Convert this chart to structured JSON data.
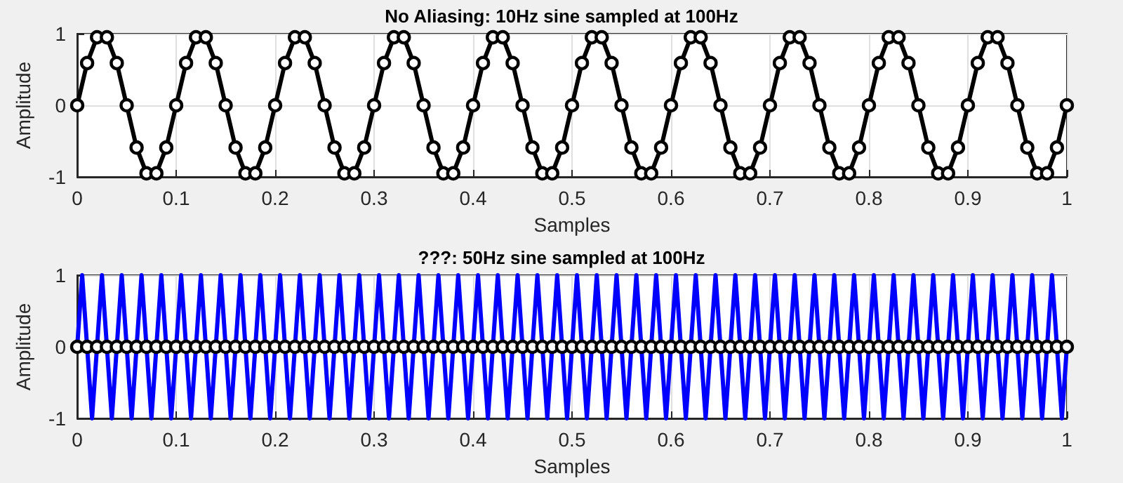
{
  "chart_data": [
    {
      "type": "line",
      "title": "No Aliasing: 10Hz sine sampled at 100Hz",
      "xlabel": "Samples",
      "ylabel": "Amplitude",
      "xlim": [
        0,
        1
      ],
      "xticks": [
        0,
        0.1,
        0.2,
        0.3,
        0.4,
        0.5,
        0.6,
        0.7,
        0.8,
        0.9,
        1
      ],
      "ylim": [
        -1,
        1
      ],
      "yticks": [
        -1,
        0,
        1
      ],
      "grid": true,
      "marker": "circle",
      "x": [
        0,
        0.01,
        0.02,
        0.03,
        0.04,
        0.05,
        0.06,
        0.07,
        0.08,
        0.09,
        0.1,
        0.11,
        0.12,
        0.13,
        0.14,
        0.15,
        0.16,
        0.17,
        0.18,
        0.19,
        0.2,
        0.21,
        0.22,
        0.23,
        0.24,
        0.25,
        0.26,
        0.27,
        0.28,
        0.29,
        0.3,
        0.31,
        0.32,
        0.33,
        0.34,
        0.35,
        0.36,
        0.37,
        0.38,
        0.39,
        0.4,
        0.41,
        0.42,
        0.43,
        0.44,
        0.45,
        0.46,
        0.47,
        0.48,
        0.49,
        0.5,
        0.51,
        0.52,
        0.53,
        0.54,
        0.55,
        0.56,
        0.57,
        0.58,
        0.59,
        0.6,
        0.61,
        0.62,
        0.63,
        0.64,
        0.65,
        0.66,
        0.67,
        0.68,
        0.69,
        0.7,
        0.71,
        0.72,
        0.73,
        0.74,
        0.75,
        0.76,
        0.77,
        0.78,
        0.79,
        0.8,
        0.81,
        0.82,
        0.83,
        0.84,
        0.85,
        0.86,
        0.87,
        0.88,
        0.89,
        0.9,
        0.91,
        0.92,
        0.93,
        0.94,
        0.95,
        0.96,
        0.97,
        0.98,
        0.99,
        1
      ],
      "series": [
        {
          "color": "#000000",
          "values": [
            0,
            0.59,
            0.95,
            0.95,
            0.59,
            0,
            -0.59,
            -0.95,
            -0.95,
            -0.59,
            0,
            0.59,
            0.95,
            0.95,
            0.59,
            0,
            -0.59,
            -0.95,
            -0.95,
            -0.59,
            0,
            0.59,
            0.95,
            0.95,
            0.59,
            0,
            -0.59,
            -0.95,
            -0.95,
            -0.59,
            0,
            0.59,
            0.95,
            0.95,
            0.59,
            0,
            -0.59,
            -0.95,
            -0.95,
            -0.59,
            0,
            0.59,
            0.95,
            0.95,
            0.59,
            0,
            -0.59,
            -0.95,
            -0.95,
            -0.59,
            0,
            0.59,
            0.95,
            0.95,
            0.59,
            0,
            -0.59,
            -0.95,
            -0.95,
            -0.59,
            0,
            0.59,
            0.95,
            0.95,
            0.59,
            0,
            -0.59,
            -0.95,
            -0.95,
            -0.59,
            0,
            0.59,
            0.95,
            0.95,
            0.59,
            0,
            -0.59,
            -0.95,
            -0.95,
            -0.59,
            0,
            0.59,
            0.95,
            0.95,
            0.59,
            0,
            -0.59,
            -0.95,
            -0.95,
            -0.59,
            0,
            0.59,
            0.95,
            0.95,
            0.59,
            0,
            -0.59,
            -0.95,
            -0.95,
            -0.59,
            0
          ]
        }
      ]
    },
    {
      "type": "line",
      "title": "???: 50Hz sine sampled at 100Hz",
      "xlabel": "Samples",
      "ylabel": "Amplitude",
      "xlim": [
        0,
        1
      ],
      "xticks": [
        0,
        0.1,
        0.2,
        0.3,
        0.4,
        0.5,
        0.6,
        0.7,
        0.8,
        0.9,
        1
      ],
      "ylim": [
        -1,
        1
      ],
      "yticks": [
        -1,
        0,
        1
      ],
      "grid": true,
      "marker": "circle",
      "x": [
        0,
        0.01,
        0.02,
        0.03,
        0.04,
        0.05,
        0.06,
        0.07,
        0.08,
        0.09,
        0.1,
        0.11,
        0.12,
        0.13,
        0.14,
        0.15,
        0.16,
        0.17,
        0.18,
        0.19,
        0.2,
        0.21,
        0.22,
        0.23,
        0.24,
        0.25,
        0.26,
        0.27,
        0.28,
        0.29,
        0.3,
        0.31,
        0.32,
        0.33,
        0.34,
        0.35,
        0.36,
        0.37,
        0.38,
        0.39,
        0.4,
        0.41,
        0.42,
        0.43,
        0.44,
        0.45,
        0.46,
        0.47,
        0.48,
        0.49,
        0.5,
        0.51,
        0.52,
        0.53,
        0.54,
        0.55,
        0.56,
        0.57,
        0.58,
        0.59,
        0.6,
        0.61,
        0.62,
        0.63,
        0.64,
        0.65,
        0.66,
        0.67,
        0.68,
        0.69,
        0.7,
        0.71,
        0.72,
        0.73,
        0.74,
        0.75,
        0.76,
        0.77,
        0.78,
        0.79,
        0.8,
        0.81,
        0.82,
        0.83,
        0.84,
        0.85,
        0.86,
        0.87,
        0.88,
        0.89,
        0.9,
        0.91,
        0.92,
        0.93,
        0.94,
        0.95,
        0.96,
        0.97,
        0.98,
        0.99,
        1
      ],
      "series": [
        {
          "color": "#0000ff",
          "marker": "none",
          "x": [
            0,
            0.005,
            0.01,
            0.015,
            0.02,
            0.025,
            0.03,
            0.035,
            0.04,
            0.045,
            0.05,
            0.055,
            0.06,
            0.065,
            0.07,
            0.075,
            0.08,
            0.085,
            0.09,
            0.095,
            0.1,
            0.105,
            0.11,
            0.115,
            0.12,
            0.125,
            0.13,
            0.135,
            0.14,
            0.145,
            0.15,
            0.155,
            0.16,
            0.165,
            0.17,
            0.175,
            0.18,
            0.185,
            0.19,
            0.195,
            0.2,
            0.205,
            0.21,
            0.215,
            0.22,
            0.225,
            0.23,
            0.235,
            0.24,
            0.245,
            0.25,
            0.255,
            0.26,
            0.265,
            0.27,
            0.275,
            0.28,
            0.285,
            0.29,
            0.295,
            0.3,
            0.305,
            0.31,
            0.315,
            0.32,
            0.325,
            0.33,
            0.335,
            0.34,
            0.345,
            0.35,
            0.355,
            0.36,
            0.365,
            0.37,
            0.375,
            0.38,
            0.385,
            0.39,
            0.395,
            0.4,
            0.405,
            0.41,
            0.415,
            0.42,
            0.425,
            0.43,
            0.435,
            0.44,
            0.445,
            0.45,
            0.455,
            0.46,
            0.465,
            0.47,
            0.475,
            0.48,
            0.485,
            0.49,
            0.495,
            0.5,
            0.505,
            0.51,
            0.515,
            0.52,
            0.525,
            0.53,
            0.535,
            0.54,
            0.545,
            0.55,
            0.555,
            0.56,
            0.565,
            0.57,
            0.575,
            0.58,
            0.585,
            0.59,
            0.595,
            0.6,
            0.605,
            0.61,
            0.615,
            0.62,
            0.625,
            0.63,
            0.635,
            0.64,
            0.645,
            0.65,
            0.655,
            0.66,
            0.665,
            0.67,
            0.675,
            0.68,
            0.685,
            0.69,
            0.695,
            0.7,
            0.705,
            0.71,
            0.715,
            0.72,
            0.725,
            0.73,
            0.735,
            0.74,
            0.745,
            0.75,
            0.755,
            0.76,
            0.765,
            0.77,
            0.775,
            0.78,
            0.785,
            0.79,
            0.795,
            0.8,
            0.805,
            0.81,
            0.815,
            0.82,
            0.825,
            0.83,
            0.835,
            0.84,
            0.845,
            0.85,
            0.855,
            0.86,
            0.865,
            0.87,
            0.875,
            0.88,
            0.885,
            0.89,
            0.895,
            0.9,
            0.905,
            0.91,
            0.915,
            0.92,
            0.925,
            0.93,
            0.935,
            0.94,
            0.945,
            0.95,
            0.955,
            0.96,
            0.965,
            0.97,
            0.975,
            0.98,
            0.985,
            0.99,
            0.995,
            1
          ],
          "values": [
            0,
            1,
            0,
            -1,
            0,
            1,
            0,
            -1,
            0,
            1,
            0,
            -1,
            0,
            1,
            0,
            -1,
            0,
            1,
            0,
            -1,
            0,
            1,
            0,
            -1,
            0,
            1,
            0,
            -1,
            0,
            1,
            0,
            -1,
            0,
            1,
            0,
            -1,
            0,
            1,
            0,
            -1,
            0,
            1,
            0,
            -1,
            0,
            1,
            0,
            -1,
            0,
            1,
            0,
            -1,
            0,
            1,
            0,
            -1,
            0,
            1,
            0,
            -1,
            0,
            1,
            0,
            -1,
            0,
            1,
            0,
            -1,
            0,
            1,
            0,
            -1,
            0,
            1,
            0,
            -1,
            0,
            1,
            0,
            -1,
            0,
            1,
            0,
            -1,
            0,
            1,
            0,
            -1,
            0,
            1,
            0,
            -1,
            0,
            1,
            0,
            -1,
            0,
            1,
            0,
            -1,
            0,
            1,
            0,
            -1,
            0,
            1,
            0,
            -1,
            0,
            1,
            0,
            -1,
            0,
            1,
            0,
            -1,
            0,
            1,
            0,
            -1,
            0,
            1,
            0,
            -1,
            0,
            1,
            0,
            -1,
            0,
            1,
            0,
            -1,
            0,
            1,
            0,
            -1,
            0,
            1,
            0,
            -1,
            0,
            1,
            0,
            -1,
            0,
            1,
            0,
            -1,
            0,
            1,
            0,
            -1,
            0,
            1,
            0,
            -1,
            0,
            1,
            0,
            -1,
            0,
            1,
            0,
            -1,
            0,
            1,
            0,
            -1,
            0,
            1,
            0,
            -1,
            0,
            1,
            0,
            -1,
            0,
            1,
            0,
            -1,
            0,
            1,
            0,
            -1,
            0,
            1,
            0,
            -1,
            0,
            1,
            0,
            -1,
            0,
            1,
            0,
            -1,
            0,
            1,
            0,
            -1,
            0
          ]
        },
        {
          "color": "#000000",
          "values": [
            0,
            0,
            0,
            0,
            0,
            0,
            0,
            0,
            0,
            0,
            0,
            0,
            0,
            0,
            0,
            0,
            0,
            0,
            0,
            0,
            0,
            0,
            0,
            0,
            0,
            0,
            0,
            0,
            0,
            0,
            0,
            0,
            0,
            0,
            0,
            0,
            0,
            0,
            0,
            0,
            0,
            0,
            0,
            0,
            0,
            0,
            0,
            0,
            0,
            0,
            0,
            0,
            0,
            0,
            0,
            0,
            0,
            0,
            0,
            0,
            0,
            0,
            0,
            0,
            0,
            0,
            0,
            0,
            0,
            0,
            0,
            0,
            0,
            0,
            0,
            0,
            0,
            0,
            0,
            0,
            0,
            0,
            0,
            0,
            0,
            0,
            0,
            0,
            0,
            0,
            0,
            0,
            0,
            0,
            0,
            0,
            0,
            0,
            0,
            0,
            0
          ]
        }
      ]
    }
  ]
}
